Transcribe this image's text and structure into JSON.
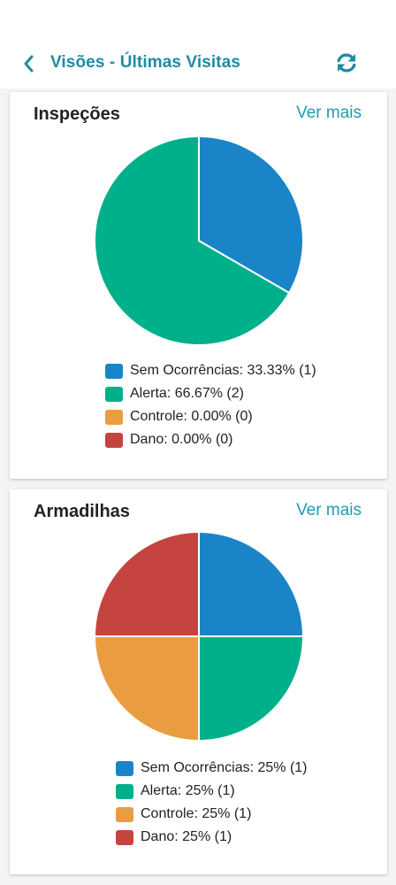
{
  "header": {
    "title": "Visões - Últimas Visitas",
    "back_icon": "chevron-left-icon",
    "refresh_icon": "refresh-icon",
    "accent": "#1f8ba3"
  },
  "cards": [
    {
      "title": "Inspeções",
      "link_label": "Ver mais",
      "legend": [
        {
          "label": "Sem Ocorrências: 33.33% (1)",
          "color": "#1985c8"
        },
        {
          "label": "Alerta: 66.67% (2)",
          "color": "#00b08a"
        },
        {
          "label": "Controle: 0.00% (0)",
          "color": "#e99d40"
        },
        {
          "label": "Dano: 0.00% (0)",
          "color": "#c6443f"
        }
      ]
    },
    {
      "title": "Armadilhas",
      "link_label": "Ver mais",
      "legend": [
        {
          "label": "Sem Ocorrências: 25% (1)",
          "color": "#1985c8"
        },
        {
          "label": "Alerta: 25% (1)",
          "color": "#00b08a"
        },
        {
          "label": "Controle: 25% (1)",
          "color": "#e99d40"
        },
        {
          "label": "Dano: 25% (1)",
          "color": "#c6443f"
        }
      ]
    }
  ],
  "chart_data": [
    {
      "type": "pie",
      "title": "Inspeções",
      "categories": [
        "Sem Ocorrências",
        "Alerta",
        "Controle",
        "Dano"
      ],
      "values": [
        1,
        2,
        0,
        0
      ],
      "percentages": [
        33.33,
        66.67,
        0,
        0
      ],
      "colors": [
        "#1985c8",
        "#00b08a",
        "#e99d40",
        "#c6443f"
      ],
      "legend_position": "bottom"
    },
    {
      "type": "pie",
      "title": "Armadilhas",
      "categories": [
        "Sem Ocorrências",
        "Alerta",
        "Controle",
        "Dano"
      ],
      "values": [
        1,
        1,
        1,
        1
      ],
      "percentages": [
        25,
        25,
        25,
        25
      ],
      "colors": [
        "#1985c8",
        "#00b08a",
        "#e99d40",
        "#c6443f"
      ],
      "legend_position": "bottom"
    }
  ]
}
